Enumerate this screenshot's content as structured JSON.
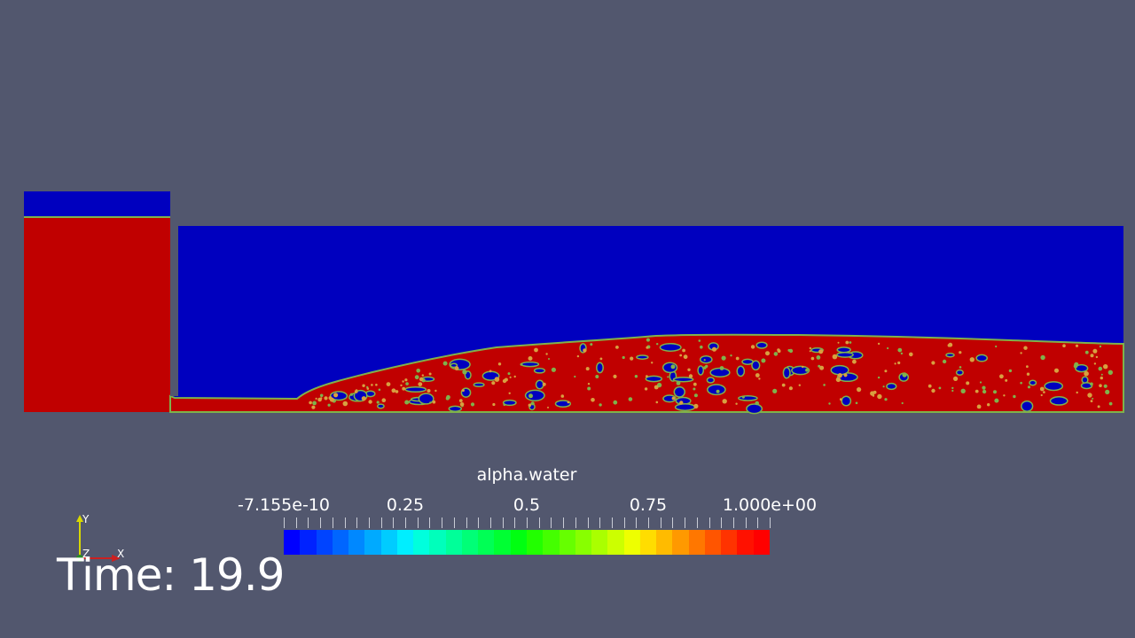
{
  "legend": {
    "title": "alpha.water",
    "tick_labels": [
      "-7.155e-10",
      "0.25",
      "0.5",
      "0.75",
      "1.000e+00"
    ],
    "colors": [
      "#0000ff",
      "#0022ff",
      "#0044ff",
      "#0066ff",
      "#0088ff",
      "#00aaff",
      "#00ccff",
      "#00eeff",
      "#00ffdd",
      "#00ffbb",
      "#00ff99",
      "#00ff77",
      "#00ff55",
      "#00ff33",
      "#00ff11",
      "#22ff00",
      "#44ff00",
      "#66ff00",
      "#88ff00",
      "#aaff00",
      "#ccff00",
      "#eeff00",
      "#ffdd00",
      "#ffbb00",
      "#ff9900",
      "#ff7700",
      "#ff5500",
      "#ff3300",
      "#ff1100",
      "#ff0000"
    ]
  },
  "time": {
    "label": "Time: 19.9"
  },
  "axes": {
    "x": "X",
    "y": "Y",
    "z": "Z"
  },
  "colors": {
    "background": "#52576e",
    "air": "#0000bf",
    "water": "#c00000",
    "interface_green": "#7fb24b",
    "interface_yellow": "#d8a040"
  }
}
